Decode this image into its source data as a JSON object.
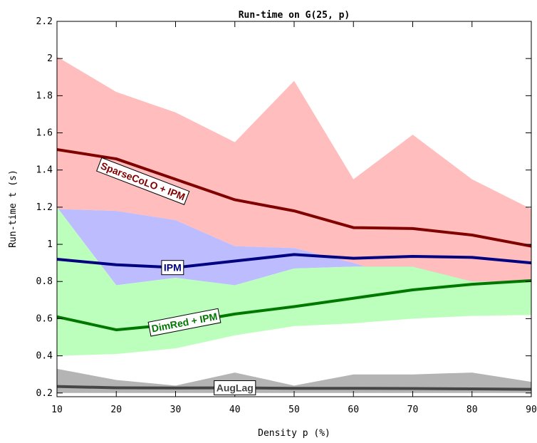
{
  "chart_data": {
    "type": "line",
    "title": "Run-time on G(25, p)",
    "xlabel": "Density p (%)",
    "ylabel": "Run-time t (s)",
    "xlim": [
      10,
      90
    ],
    "ylim": [
      0.18,
      2.2
    ],
    "x_ticks": [
      "10",
      "20",
      "30",
      "40",
      "50",
      "60",
      "70",
      "80",
      "90"
    ],
    "y_ticks": [
      "0.2",
      "0.4",
      "0.6",
      "0.8",
      "1",
      "1.2",
      "1.4",
      "1.6",
      "1.8",
      "2",
      "2.2"
    ],
    "x": [
      10,
      20,
      30,
      40,
      50,
      60,
      70,
      80,
      90
    ],
    "grid": false,
    "series": [
      {
        "name": "SparseCoLO + IPM",
        "color": "#800000",
        "band_color": "#ffbdbd",
        "values": [
          1.51,
          1.46,
          1.35,
          1.24,
          1.18,
          1.09,
          1.085,
          1.05,
          0.99
        ],
        "band_upper": [
          2.01,
          1.82,
          1.71,
          1.55,
          1.88,
          1.35,
          1.59,
          1.35,
          1.19
        ],
        "band_lower": [
          1.19,
          1.18,
          1.13,
          0.99,
          0.98,
          0.9,
          0.8,
          0.78,
          0.8
        ]
      },
      {
        "name": "IPM",
        "color": "#000080",
        "band_color": "#bcbcff",
        "values": [
          0.92,
          0.89,
          0.875,
          0.91,
          0.945,
          0.925,
          0.935,
          0.93,
          0.9
        ],
        "band_upper": [
          1.19,
          1.18,
          1.13,
          0.99,
          0.98,
          0.9,
          0.8,
          0.78,
          0.8
        ],
        "band_lower": [
          1.2,
          0.78,
          0.82,
          0.78,
          0.87,
          0.88,
          0.88,
          0.8,
          0.8
        ]
      },
      {
        "name": "DimRed + IPM",
        "color": "#007800",
        "band_color": "#bcffbc",
        "values": [
          0.61,
          0.54,
          0.57,
          0.625,
          0.665,
          0.71,
          0.755,
          0.785,
          0.805
        ],
        "band_upper": [
          1.2,
          0.78,
          0.82,
          0.78,
          0.87,
          0.88,
          0.88,
          0.8,
          0.8
        ],
        "band_lower": [
          0.4,
          0.41,
          0.44,
          0.51,
          0.56,
          0.575,
          0.6,
          0.615,
          0.62
        ]
      },
      {
        "name": "AugLag",
        "color": "#454545",
        "band_color": "#b4b4b4",
        "values": [
          0.235,
          0.228,
          0.227,
          0.228,
          0.225,
          0.225,
          0.224,
          0.222,
          0.22
        ],
        "band_upper": [
          0.33,
          0.27,
          0.24,
          0.31,
          0.24,
          0.3,
          0.3,
          0.31,
          0.26
        ],
        "band_lower": [
          0.2,
          0.2,
          0.2,
          0.2,
          0.2,
          0.2,
          0.2,
          0.2,
          0.2
        ]
      }
    ],
    "annotations": [
      {
        "text": "SparseCoLO + IPM",
        "series": "SparseCoLO + IPM",
        "at_x": 24.5,
        "at_y": 1.34,
        "rotation": 21
      },
      {
        "text": "IPM",
        "series": "IPM",
        "at_x": 29.5,
        "at_y": 0.875,
        "rotation": 0
      },
      {
        "text": "DimRed + IPM",
        "series": "DimRed + IPM",
        "at_x": 31.5,
        "at_y": 0.58,
        "rotation": -11
      },
      {
        "text": "AugLag",
        "series": "AugLag",
        "at_x": 40,
        "at_y": 0.228,
        "rotation": 0
      }
    ]
  }
}
